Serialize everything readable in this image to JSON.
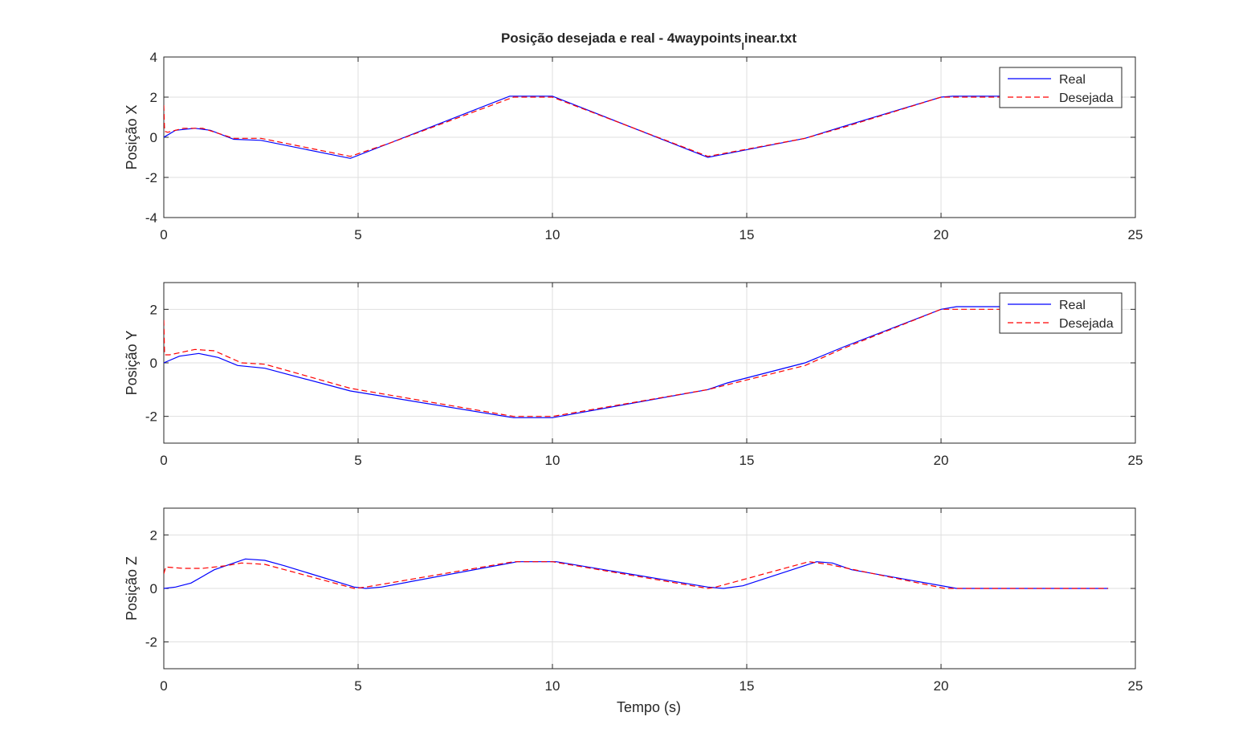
{
  "figure": {
    "title_main": "Posição desejada e real - 4waypoints",
    "title_sub": "l",
    "title_tail": "inear.txt",
    "xlabel": "Tempo (s)"
  },
  "colors": {
    "real": "#0000ff",
    "desejada": "#ff0000",
    "grid": "#dfdfdf",
    "axis": "#262626"
  },
  "chart_data": [
    {
      "type": "line",
      "ylabel": "Posição X",
      "xlim": [
        0,
        25
      ],
      "ylim": [
        -4,
        4
      ],
      "xticks": [
        0,
        5,
        10,
        15,
        20,
        25
      ],
      "yticks": [
        -4,
        -2,
        0,
        2,
        4
      ],
      "grid": true,
      "legend": "top-right",
      "series": [
        {
          "name": "Real",
          "style": "solid",
          "x": [
            0,
            0.3,
            0.8,
            1.2,
            1.8,
            2.5,
            4.8,
            5.8,
            8.9,
            10,
            14,
            16.5,
            17.5,
            20,
            20.3,
            22,
            24.3
          ],
          "y": [
            0,
            0.35,
            0.45,
            0.35,
            -0.1,
            -0.15,
            -1.05,
            -0.3,
            2.05,
            2.05,
            -1,
            -0.05,
            0.55,
            2.0,
            2.05,
            2.05,
            2.05
          ]
        },
        {
          "name": "Desejada",
          "style": "dashed",
          "x": [
            0,
            0.02,
            0.1,
            0.5,
            1.0,
            1.8,
            2.5,
            4.8,
            5.8,
            9,
            10,
            14,
            16.5,
            17.5,
            20,
            20.3,
            24.3
          ],
          "y": [
            1.6,
            0.3,
            0.25,
            0.45,
            0.45,
            -0.05,
            -0.05,
            -0.95,
            -0.3,
            2.0,
            2.0,
            -0.95,
            -0.05,
            0.5,
            2.0,
            2.0,
            2.0
          ]
        }
      ]
    },
    {
      "type": "line",
      "ylabel": "Posição Y",
      "xlim": [
        0,
        25
      ],
      "ylim": [
        -3,
        3
      ],
      "xticks": [
        0,
        5,
        10,
        15,
        20,
        25
      ],
      "yticks": [
        -2,
        0,
        2
      ],
      "grid": true,
      "legend": "top-right",
      "series": [
        {
          "name": "Real",
          "style": "solid",
          "x": [
            0,
            0.4,
            0.9,
            1.4,
            1.9,
            2.6,
            4.8,
            9,
            10,
            14,
            14.5,
            16.5,
            17.5,
            20,
            20.4,
            24.3
          ],
          "y": [
            0,
            0.25,
            0.35,
            0.2,
            -0.1,
            -0.2,
            -1.05,
            -2.05,
            -2.05,
            -1.0,
            -0.75,
            0,
            0.6,
            2.0,
            2.1,
            2.1
          ]
        },
        {
          "name": "Desejada",
          "style": "dashed",
          "x": [
            0,
            0.02,
            0.15,
            0.8,
            1.3,
            2.0,
            2.6,
            4.8,
            9,
            10,
            14,
            16.5,
            17.5,
            20,
            24.3
          ],
          "y": [
            1.6,
            0.3,
            0.3,
            0.5,
            0.45,
            0,
            -0.05,
            -0.95,
            -2.0,
            -2.0,
            -1.0,
            -0.1,
            0.55,
            2.0,
            2.0
          ]
        }
      ]
    },
    {
      "type": "line",
      "ylabel": "Posição Z",
      "xlim": [
        0,
        25
      ],
      "ylim": [
        -3,
        3
      ],
      "xticks": [
        0,
        5,
        10,
        15,
        20,
        25
      ],
      "yticks": [
        -2,
        0,
        2
      ],
      "grid": true,
      "series": [
        {
          "name": "Real",
          "style": "solid",
          "x": [
            0,
            0.3,
            0.7,
            1.3,
            2.1,
            2.6,
            3.1,
            4.9,
            5.2,
            5.6,
            9.1,
            10.1,
            14,
            14.4,
            14.9,
            16.8,
            17.2,
            17.7,
            20.4,
            24.3
          ],
          "y": [
            0,
            0.05,
            0.2,
            0.7,
            1.1,
            1.05,
            0.85,
            0.05,
            0,
            0.05,
            1.0,
            1.0,
            0.05,
            0,
            0.1,
            1.0,
            0.95,
            0.7,
            0,
            0
          ]
        },
        {
          "name": "Desejada",
          "style": "dashed",
          "x": [
            0,
            0.05,
            0.5,
            1.0,
            1.6,
            2.0,
            2.6,
            4.9,
            5.2,
            9.0,
            10.0,
            14.0,
            14.2,
            16.6,
            17.1,
            20.1,
            24.3
          ],
          "y": [
            0.55,
            0.8,
            0.75,
            0.75,
            0.85,
            0.95,
            0.9,
            0,
            0.05,
            1.0,
            1.0,
            0,
            0.05,
            1.0,
            0.9,
            0,
            0
          ]
        }
      ]
    }
  ]
}
